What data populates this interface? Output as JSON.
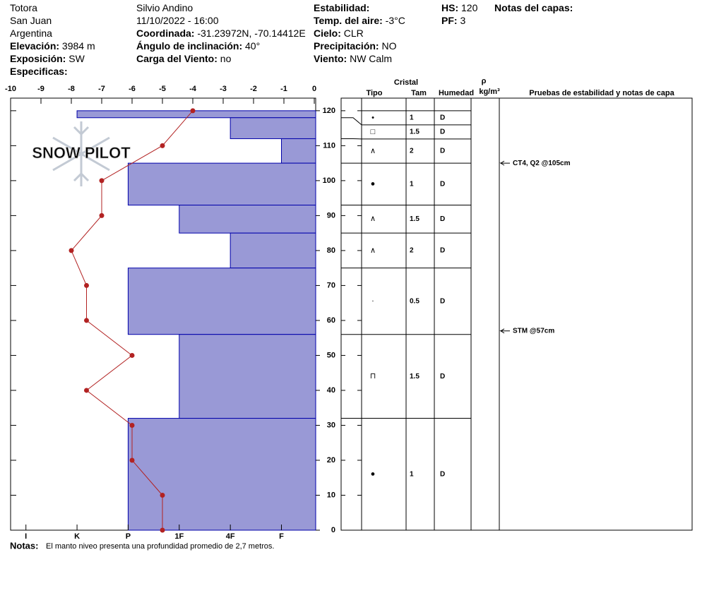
{
  "header_columns": [
    [
      {
        "value": "Totora"
      },
      {
        "value": "San Juan"
      },
      {
        "value": "Argentina"
      },
      {
        "label": "Elevación:",
        "value": "3984 m"
      },
      {
        "label": "Exposición:",
        "value": "SW"
      },
      {
        "label": "Especificas:"
      }
    ],
    [
      {
        "value": "Silvio Andino"
      },
      {
        "value": "11/10/2022 - 16:00"
      },
      {
        "label": "Coordinada:",
        "value": "-31.23972N, -70.14412E"
      },
      {
        "label": "Ángulo de inclinación:",
        "value": "40°"
      },
      {
        "label": "Carga del Viento:",
        "value": "no"
      }
    ],
    [
      {
        "label": "Estabilidad:"
      },
      {
        "label": "Temp. del aire:",
        "value": "-3°C"
      },
      {
        "label": "Cielo:",
        "value": "CLR"
      },
      {
        "label": "Precipitación:",
        "value": "NO"
      },
      {
        "label": "Viento:",
        "value": "NW Calm"
      }
    ],
    [
      {
        "label": "HS:",
        "value": "120"
      },
      {
        "label": "PF:",
        "value": "3"
      }
    ],
    [
      {
        "label": "Notas del capas:"
      }
    ]
  ],
  "watermark": "SNOW PILOT",
  "chart_data": {
    "type": "snow_profile",
    "ylim": [
      0,
      123
    ],
    "yticks": [
      0,
      10,
      20,
      30,
      40,
      50,
      60,
      70,
      80,
      90,
      100,
      110,
      120
    ],
    "temperature": {
      "depths": [
        120,
        110,
        100,
        90,
        80,
        70,
        60,
        50,
        40,
        30,
        20,
        10,
        0
      ],
      "values": [
        -4,
        -5,
        -7,
        -7,
        -8,
        -7.5,
        -7.5,
        -6,
        -7.5,
        -6,
        -6,
        -5,
        -5
      ],
      "color": "#b22222",
      "xlim": [
        -10,
        0
      ],
      "xticks": [
        -10,
        -9,
        -8,
        -7,
        -6,
        -5,
        -4,
        -3,
        -2,
        -1,
        0
      ]
    },
    "hardness_lim": [
      6.3,
      0.33
    ],
    "hardness_ticks": [
      {
        "value": 6,
        "label": "I"
      },
      {
        "value": 5,
        "label": "K"
      },
      {
        "value": 4,
        "label": "P"
      },
      {
        "value": 3,
        "label": "1F"
      },
      {
        "value": 2,
        "label": "4F"
      },
      {
        "value": 1,
        "label": "F"
      }
    ],
    "layers": {
      "tops": [
        120,
        118,
        112,
        105,
        93,
        85,
        75,
        56,
        32
      ],
      "bottoms": [
        118,
        112,
        105,
        93,
        85,
        75,
        56,
        32,
        0
      ],
      "hardness": [
        5,
        2,
        1,
        4,
        3,
        2,
        4,
        3,
        4
      ],
      "grain_type": [
        "•",
        "□",
        "∧",
        "●",
        "∧",
        "∧",
        "·",
        "⊓",
        "●"
      ],
      "grain_size": [
        1,
        1.5,
        2,
        1,
        1.5,
        2,
        0.5,
        1.5,
        1
      ],
      "moisture": [
        "D",
        "D",
        "D",
        "D",
        "D",
        "D",
        "D",
        "D",
        "D"
      ],
      "color": "#9999d6"
    },
    "column_headers": {
      "crystal": "Cristal",
      "type": "Tipo",
      "size": "Tam",
      "moisture": "Humedad",
      "density": "ρ",
      "density_unit": "kg/m³",
      "tests": "Pruebas de estabilidad y notas de capa"
    },
    "tests": [
      {
        "depth": 105,
        "label": "CT4, Q2 @105cm"
      },
      {
        "depth": 57,
        "label": "STM @57cm"
      }
    ],
    "notes_label": "Notas:",
    "notes": "El manto niveo presenta una profundidad promedio de 2,7 metros."
  }
}
